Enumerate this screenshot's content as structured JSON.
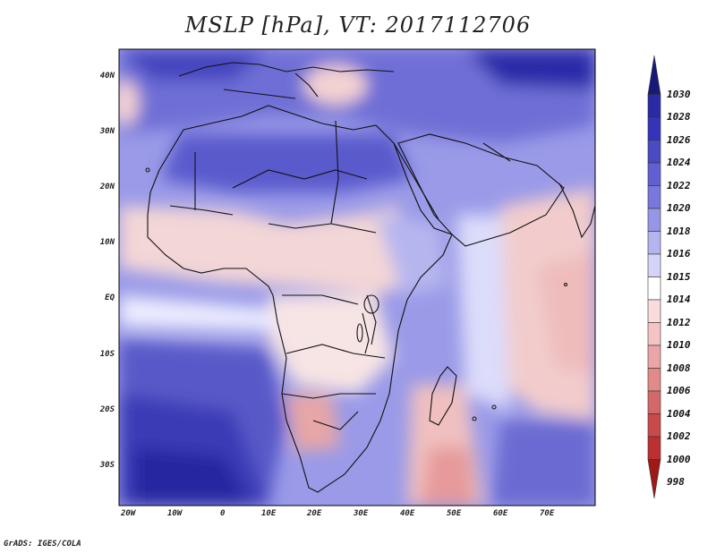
{
  "title": "MSLP [hPa], VT: 2017112706",
  "credit": "GrADS: IGES/COLA",
  "latitude_labels": [
    "40N",
    "30N",
    "20N",
    "10N",
    "EQ",
    "10S",
    "20S",
    "30S"
  ],
  "longitude_labels": [
    "20W",
    "10W",
    "0",
    "10E",
    "20E",
    "30E",
    "40E",
    "50E",
    "60E",
    "70E"
  ],
  "colorbar": {
    "levels": [
      {
        "label": "1030",
        "color": "#19197a"
      },
      {
        "label": "1028",
        "color": "#2a2aa6"
      },
      {
        "label": "1026",
        "color": "#3434b8"
      },
      {
        "label": "1024",
        "color": "#4a4ac4"
      },
      {
        "label": "1022",
        "color": "#6060d2"
      },
      {
        "label": "1020",
        "color": "#7878dc"
      },
      {
        "label": "1018",
        "color": "#9696e6"
      },
      {
        "label": "1016",
        "color": "#b4b4ef"
      },
      {
        "label": "1015",
        "color": "#d4d4f8"
      },
      {
        "label": "1014",
        "color": "#ffffff"
      },
      {
        "label": "1012",
        "color": "#fadcdc"
      },
      {
        "label": "1010",
        "color": "#f4c4c4"
      },
      {
        "label": "1008",
        "color": "#eaa6a6"
      },
      {
        "label": "1006",
        "color": "#e08a8a"
      },
      {
        "label": "1004",
        "color": "#d46868"
      },
      {
        "label": "1002",
        "color": "#c84a4a"
      },
      {
        "label": "1000",
        "color": "#bb3030"
      },
      {
        "label": "998",
        "color": "#9e1a1a"
      }
    ]
  }
}
